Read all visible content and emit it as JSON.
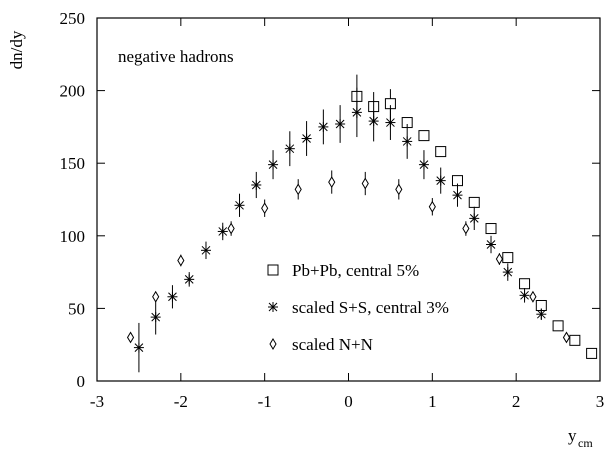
{
  "chart_data": {
    "type": "scatter",
    "ylabel": "dn/dy",
    "xlabel": "y",
    "xlabel_sub": "cm",
    "annotation": "negative hadrons",
    "xlim": [
      -3,
      3
    ],
    "xticks": [
      -3,
      -2,
      -1,
      0,
      1,
      2,
      3
    ],
    "ylim": [
      0,
      250
    ],
    "yticks": [
      0,
      50,
      100,
      150,
      200,
      250
    ],
    "series": [
      {
        "name": "Pb+Pb, central 5%",
        "color": "#000000",
        "marker": "square",
        "x": [
          0.1,
          0.3,
          0.5,
          0.7,
          0.9,
          1.1,
          1.3,
          1.5,
          1.7,
          1.9,
          2.1,
          2.3,
          2.5,
          2.7,
          2.9
        ],
        "values": [
          196,
          189,
          191,
          178,
          169,
          158,
          138,
          123,
          105,
          85,
          67,
          52,
          38,
          28,
          19
        ],
        "errors": [
          15,
          10,
          10,
          null,
          null,
          null,
          null,
          null,
          null,
          null,
          null,
          null,
          null,
          null,
          null
        ]
      },
      {
        "name": "scaled S+S, central 3%",
        "color": "#000000",
        "marker": "star",
        "x": [
          -2.5,
          -2.3,
          -2.1,
          -1.9,
          -1.7,
          -1.5,
          -1.3,
          -1.1,
          -0.9,
          -0.7,
          -0.5,
          -0.3,
          -0.1,
          0.1,
          0.3,
          0.5,
          0.7,
          0.9,
          1.1,
          1.3,
          1.5,
          1.7,
          1.9,
          2.1,
          2.3
        ],
        "values": [
          23,
          44,
          58,
          70,
          90,
          103,
          121,
          135,
          149,
          160,
          167,
          175,
          177,
          185,
          179,
          178,
          165,
          149,
          138,
          128,
          112,
          94,
          75,
          59,
          46
        ],
        "errors": [
          17,
          12,
          8,
          5,
          6,
          6,
          8,
          9,
          10,
          12,
          12,
          12,
          13,
          17,
          14,
          12,
          12,
          10,
          9,
          8,
          8,
          6,
          6,
          5,
          4
        ]
      },
      {
        "name": "scaled N+N",
        "color": "#000000",
        "marker": "diamond",
        "x": [
          -2.6,
          -2.3,
          -2.0,
          -1.4,
          -1.0,
          -0.6,
          -0.2,
          0.2,
          0.6,
          1.0,
          1.4,
          1.8,
          2.2,
          2.6
        ],
        "values": [
          30,
          58,
          83,
          105,
          119,
          132,
          137,
          136,
          132,
          120,
          105,
          84,
          58,
          30
        ],
        "errors": [
          null,
          null,
          4,
          5,
          6,
          7,
          8,
          8,
          7,
          6,
          5,
          4,
          null,
          null
        ]
      }
    ]
  }
}
